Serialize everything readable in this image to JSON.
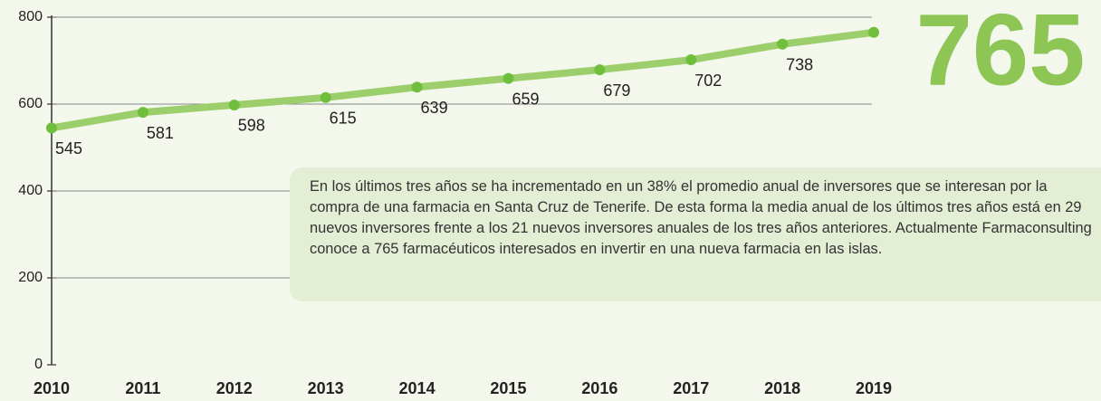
{
  "chart_data": {
    "type": "line",
    "categories": [
      "2010",
      "2011",
      "2012",
      "2013",
      "2014",
      "2015",
      "2016",
      "2017",
      "2018",
      "2019"
    ],
    "values": [
      545,
      581,
      598,
      615,
      639,
      659,
      679,
      702,
      738,
      765
    ],
    "color": "#9ccf6c",
    "marker_color": "#6fbf3c",
    "ylim": [
      0,
      800
    ],
    "yticks": [
      0,
      200,
      400,
      600,
      800
    ],
    "grid": true,
    "annotation": "En los últimos tres años se ha incrementado en un 38% el promedio anual de inversores que se interesan por la compra de una farmacia en Santa Cruz de Tenerife. De esta forma la media anual de los últimos tres años está en 29 nuevos inversores frente a los 21 nuevos inversores anuales de los tres años anteriores. Actualmente Farmaconsulting conoce a 765 farmacéuticos interesados en invertir en una nueva farmacia en las islas."
  }
}
